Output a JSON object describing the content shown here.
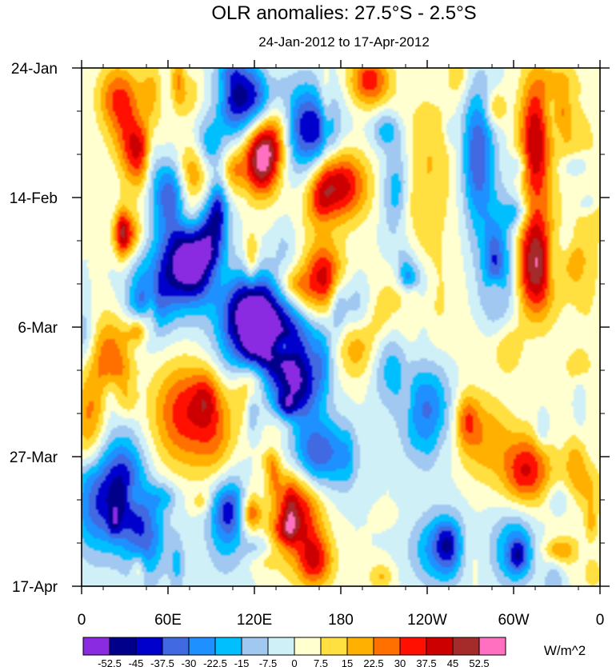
{
  "chart_data": {
    "type": "heatmap",
    "title": "OLR anomalies: 27.5°S - 2.5°S",
    "subtitle": "24-Jan-2012 to 17-Apr-2012",
    "x_ticks": [
      "0",
      "60E",
      "120E",
      "180",
      "120W",
      "60W",
      "0"
    ],
    "y_ticks": [
      "24-Jan",
      "14-Feb",
      "6-Mar",
      "27-Mar",
      "17-Apr"
    ],
    "xlim": [
      0,
      360
    ],
    "ylim_days": [
      0,
      84
    ],
    "colorbar": {
      "levels": [
        "-52.5",
        "-45",
        "-37.5",
        "-30",
        "-22.5",
        "-15",
        "-7.5",
        "0",
        "7.5",
        "15",
        "22.5",
        "30",
        "37.5",
        "45",
        "52.5"
      ],
      "colors": [
        "#8a2be2",
        "#00008b",
        "#0000cd",
        "#4169e1",
        "#1e90ff",
        "#00bfff",
        "#a0c8f0",
        "#d0f0f8",
        "#ffffd0",
        "#ffe040",
        "#ffb000",
        "#ff7000",
        "#ff1000",
        "#cc0000",
        "#a52a2a",
        "#ff70c0"
      ],
      "unit": "W/m^2"
    },
    "features": [
      {
        "lon": 130,
        "day": 44,
        "value": -55,
        "lon_spread": 22,
        "day_spread": 5
      },
      {
        "lon": 118,
        "day": 38,
        "value": -40,
        "lon_spread": 12,
        "day_spread": 4
      },
      {
        "lon": 150,
        "day": 52,
        "value": -42,
        "lon_spread": 12,
        "day_spread": 4
      },
      {
        "lon": 165,
        "day": 63,
        "value": -45,
        "lon_spread": 15,
        "day_spread": 4
      },
      {
        "lon": 105,
        "day": 3,
        "value": -50,
        "lon_spread": 8,
        "day_spread": 5
      },
      {
        "lon": 122,
        "day": 5,
        "value": -40,
        "lon_spread": 10,
        "day_spread": 4
      },
      {
        "lon": 155,
        "day": 10,
        "value": -48,
        "lon_spread": 14,
        "day_spread": 5
      },
      {
        "lon": 62,
        "day": 20,
        "value": -38,
        "lon_spread": 10,
        "day_spread": 4
      },
      {
        "lon": 80,
        "day": 33,
        "value": -40,
        "lon_spread": 10,
        "day_spread": 4
      },
      {
        "lon": 50,
        "day": 36,
        "value": -35,
        "lon_spread": 12,
        "day_spread": 5
      },
      {
        "lon": 68,
        "day": 30,
        "value": -35,
        "lon_spread": 10,
        "day_spread": 5
      },
      {
        "lon": 90,
        "day": 26,
        "value": -40,
        "lon_spread": 8,
        "day_spread": 4
      },
      {
        "lon": 10,
        "day": 70,
        "value": -35,
        "lon_spread": 12,
        "day_spread": 6
      },
      {
        "lon": 30,
        "day": 68,
        "value": -38,
        "lon_spread": 10,
        "day_spread": 6
      },
      {
        "lon": 45,
        "day": 76,
        "value": -30,
        "lon_spread": 10,
        "day_spread": 5
      },
      {
        "lon": 100,
        "day": 72,
        "value": -30,
        "lon_spread": 10,
        "day_spread": 6
      },
      {
        "lon": 240,
        "day": 55,
        "value": -35,
        "lon_spread": 12,
        "day_spread": 6
      },
      {
        "lon": 250,
        "day": 78,
        "value": -30,
        "lon_spread": 14,
        "day_spread": 4
      },
      {
        "lon": 275,
        "day": 14,
        "value": -38,
        "lon_spread": 8,
        "day_spread": 8
      },
      {
        "lon": 290,
        "day": 32,
        "value": -28,
        "lon_spread": 10,
        "day_spread": 7
      },
      {
        "lon": 300,
        "day": 78,
        "value": -30,
        "lon_spread": 10,
        "day_spread": 4
      },
      {
        "lon": 220,
        "day": 20,
        "value": -28,
        "lon_spread": 8,
        "day_spread": 5
      },
      {
        "lon": 215,
        "day": 48,
        "value": -25,
        "lon_spread": 10,
        "day_spread": 5
      },
      {
        "lon": 190,
        "day": 40,
        "value": -25,
        "lon_spread": 8,
        "day_spread": 4
      },
      {
        "lon": 40,
        "day": 12,
        "value": 48,
        "lon_spread": 9,
        "day_spread": 5
      },
      {
        "lon": 25,
        "day": 5,
        "value": 30,
        "lon_spread": 10,
        "day_spread": 4
      },
      {
        "lon": 125,
        "day": 15,
        "value": 55,
        "lon_spread": 9,
        "day_spread": 4
      },
      {
        "lon": 135,
        "day": 10,
        "value": 35,
        "lon_spread": 10,
        "day_spread": 4
      },
      {
        "lon": 178,
        "day": 19,
        "value": 45,
        "lon_spread": 14,
        "day_spread": 4
      },
      {
        "lon": 75,
        "day": 18,
        "value": 32,
        "lon_spread": 8,
        "day_spread": 4
      },
      {
        "lon": 168,
        "day": 34,
        "value": 42,
        "lon_spread": 10,
        "day_spread": 4
      },
      {
        "lon": 190,
        "day": 44,
        "value": 30,
        "lon_spread": 10,
        "day_spread": 4
      },
      {
        "lon": 72,
        "day": 56,
        "value": 35,
        "lon_spread": 16,
        "day_spread": 6
      },
      {
        "lon": 150,
        "day": 72,
        "value": 42,
        "lon_spread": 12,
        "day_spread": 6
      },
      {
        "lon": 160,
        "day": 80,
        "value": 35,
        "lon_spread": 10,
        "day_spread": 3
      },
      {
        "lon": 200,
        "day": 2,
        "value": 35,
        "lon_spread": 10,
        "day_spread": 3
      },
      {
        "lon": 315,
        "day": 12,
        "value": 45,
        "lon_spread": 8,
        "day_spread": 8
      },
      {
        "lon": 315,
        "day": 32,
        "value": 52,
        "lon_spread": 10,
        "day_spread": 6
      },
      {
        "lon": 310,
        "day": 65,
        "value": 35,
        "lon_spread": 12,
        "day_spread": 4
      },
      {
        "lon": 280,
        "day": 60,
        "value": 20,
        "lon_spread": 14,
        "day_spread": 5
      },
      {
        "lon": 230,
        "day": 40,
        "value": 15,
        "lon_spread": 20,
        "day_spread": 10
      },
      {
        "lon": 350,
        "day": 25,
        "value": 10,
        "lon_spread": 12,
        "day_spread": 20
      },
      {
        "lon": 5,
        "day": 58,
        "value": 25,
        "lon_spread": 8,
        "day_spread": 6
      },
      {
        "lon": 20,
        "day": 47,
        "value": 28,
        "lon_spread": 10,
        "day_spread": 5
      },
      {
        "lon": 240,
        "day": 15,
        "value": 15,
        "lon_spread": 15,
        "day_spread": 8
      },
      {
        "lon": 95,
        "day": 62,
        "value": 20,
        "lon_spread": 10,
        "day_spread": 6
      }
    ]
  }
}
